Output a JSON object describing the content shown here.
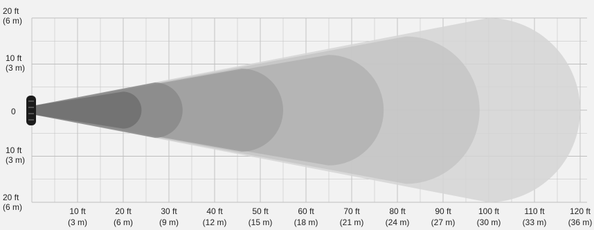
{
  "colors": {
    "background": "#f2f2f2",
    "grid": "#bdbdbd",
    "beam_levels": [
      "#d5d5d5",
      "#c4c4c4",
      "#b2b2b2",
      "#9f9f9f",
      "#8a8a8a",
      "#6e6e6e"
    ],
    "text": "#222222",
    "light_fixture": "#222222"
  },
  "y_axis": {
    "labels": [
      {
        "line1": "20 ft",
        "line2": "(6 m)"
      },
      {
        "line1": "10 ft",
        "line2": "(3 m)"
      },
      {
        "line1": "0",
        "line2": ""
      },
      {
        "line1": "10 ft",
        "line2": "(3 m)"
      },
      {
        "line1": "20 ft",
        "line2": "(6 m)"
      }
    ]
  },
  "x_axis": {
    "labels": [
      {
        "line1": "10 ft",
        "line2": "(3 m)"
      },
      {
        "line1": "20 ft",
        "line2": "(6 m)"
      },
      {
        "line1": "30 ft",
        "line2": "(9 m)"
      },
      {
        "line1": "40 ft",
        "line2": "(12 m)"
      },
      {
        "line1": "50 ft",
        "line2": "(15 m)"
      },
      {
        "line1": "60 ft",
        "line2": "(18 m)"
      },
      {
        "line1": "70 ft",
        "line2": "(21 m)"
      },
      {
        "line1": "80 ft",
        "line2": "(24 m)"
      },
      {
        "line1": "90 ft",
        "line2": "(27 m)"
      },
      {
        "line1": "100 ft",
        "line2": "(30 m)"
      },
      {
        "line1": "110 ft",
        "line2": "(33 m)"
      },
      {
        "line1": "120 ft",
        "line2": "(36 m)"
      }
    ]
  },
  "beam_zones": [
    {
      "reach_ft": 120,
      "half_width_ft": 20
    },
    {
      "reach_ft": 98,
      "half_width_ft": 16
    },
    {
      "reach_ft": 77,
      "half_width_ft": 12
    },
    {
      "reach_ft": 55,
      "half_width_ft": 9
    },
    {
      "reach_ft": 33,
      "half_width_ft": 6
    },
    {
      "reach_ft": 24,
      "half_width_ft": 4
    }
  ]
}
